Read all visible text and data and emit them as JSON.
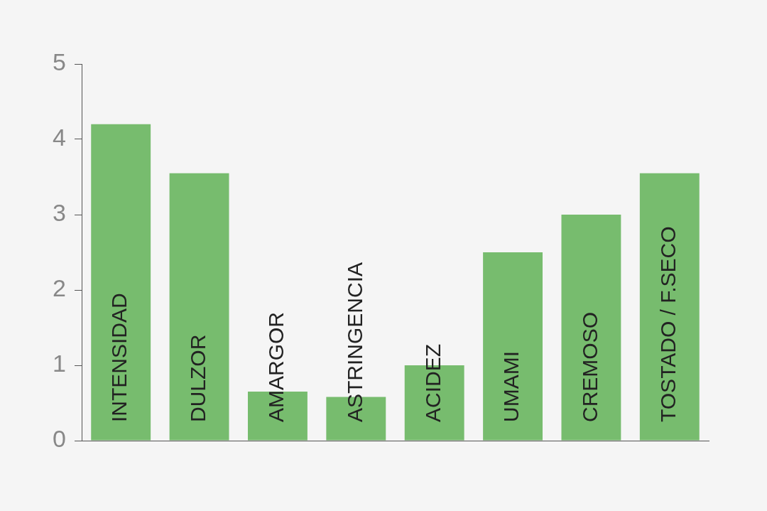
{
  "chart_data": {
    "type": "bar",
    "categories": [
      "INTENSIDAD",
      "DULZOR",
      "AMARGOR",
      "ASTRINGENCIA",
      "ACIDEZ",
      "UMAMI",
      "CREMOSO",
      "TOSTADO / F.SECO"
    ],
    "values": [
      4.2,
      3.55,
      0.65,
      0.58,
      1.0,
      2.5,
      3.0,
      3.55
    ],
    "color": "#77bc6e",
    "ylim": [
      0,
      5
    ],
    "yticks": [
      0,
      1,
      2,
      3,
      4,
      5
    ],
    "grid": false,
    "legend": false
  }
}
